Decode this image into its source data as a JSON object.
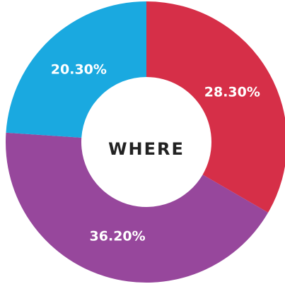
{
  "chart_data": {
    "type": "donut",
    "title": "WHERE",
    "categories": [
      null,
      null,
      null
    ],
    "values": [
      28.3,
      36.2,
      20.3
    ],
    "value_labels": [
      "28.30%",
      "36.20%",
      "20.30%"
    ],
    "colors": [
      "#d62f48",
      "#97479c",
      "#1aa9e0"
    ]
  }
}
